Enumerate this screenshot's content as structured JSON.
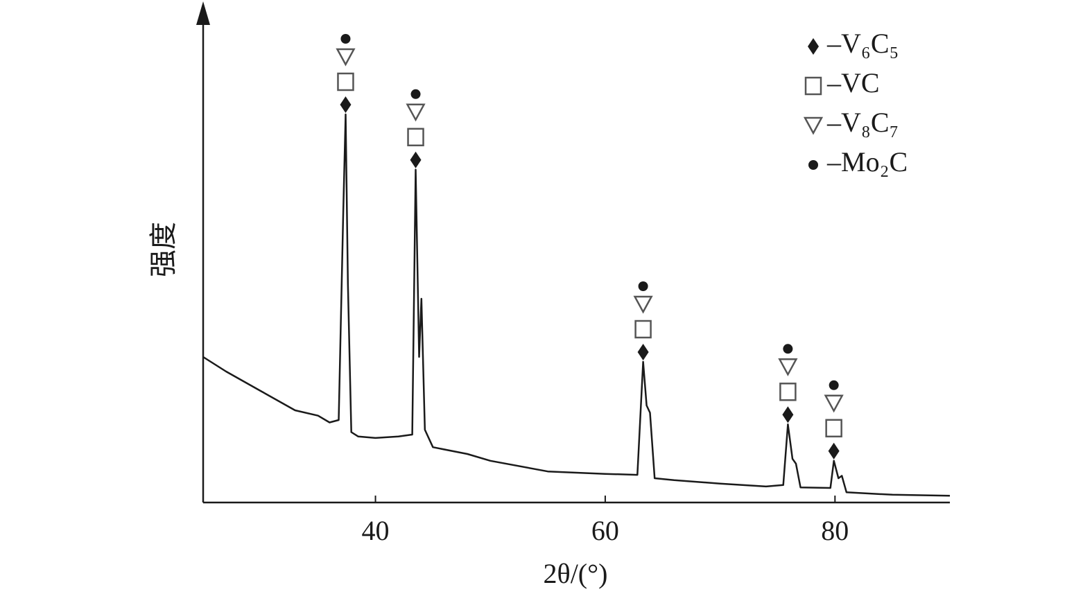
{
  "chart_data": {
    "type": "line",
    "xlabel": "2θ/(°)",
    "ylabel": "强度",
    "x": [
      25,
      27,
      30,
      33,
      35,
      36,
      36.8,
      37.2,
      37.4,
      37.6,
      37.9,
      38.5,
      40,
      42,
      43.2,
      43.5,
      43.8,
      44.0,
      44.3,
      45,
      48,
      50,
      55,
      60,
      62.8,
      63.3,
      63.6,
      63.9,
      64.3,
      66,
      70,
      74,
      75.5,
      75.9,
      76.3,
      76.6,
      77,
      79.6,
      79.9,
      80.3,
      80.6,
      81,
      85,
      90
    ],
    "series": [
      {
        "color": "#1a1a1a",
        "values": [
          30,
          27,
          23,
          19,
          17.9,
          16.5,
          17,
          60,
          80,
          45,
          14.5,
          13.6,
          13.3,
          13.6,
          14,
          68.6,
          30,
          42,
          15,
          11.4,
          10,
          8.6,
          6.4,
          5.9,
          5.7,
          29,
          20,
          18.5,
          5,
          4.6,
          3.9,
          3.3,
          3.6,
          16.1,
          9,
          8,
          3.1,
          3,
          8.6,
          5,
          5.5,
          2.1,
          1.6,
          1.4
        ]
      }
    ],
    "xlim": [
      25,
      90
    ],
    "ylim": [
      0,
      100
    ],
    "xticks": [
      40,
      60,
      80
    ],
    "peaks": [
      37.4,
      43.5,
      63.3,
      75.9,
      79.9
    ],
    "phases": [
      {
        "symbol": "diamond",
        "label": "–V₆C₅"
      },
      {
        "symbol": "square",
        "label": "–VC"
      },
      {
        "symbol": "triangle",
        "label": "–V₈C₇"
      },
      {
        "symbol": "dot",
        "label": "–Mo₂C"
      }
    ]
  }
}
